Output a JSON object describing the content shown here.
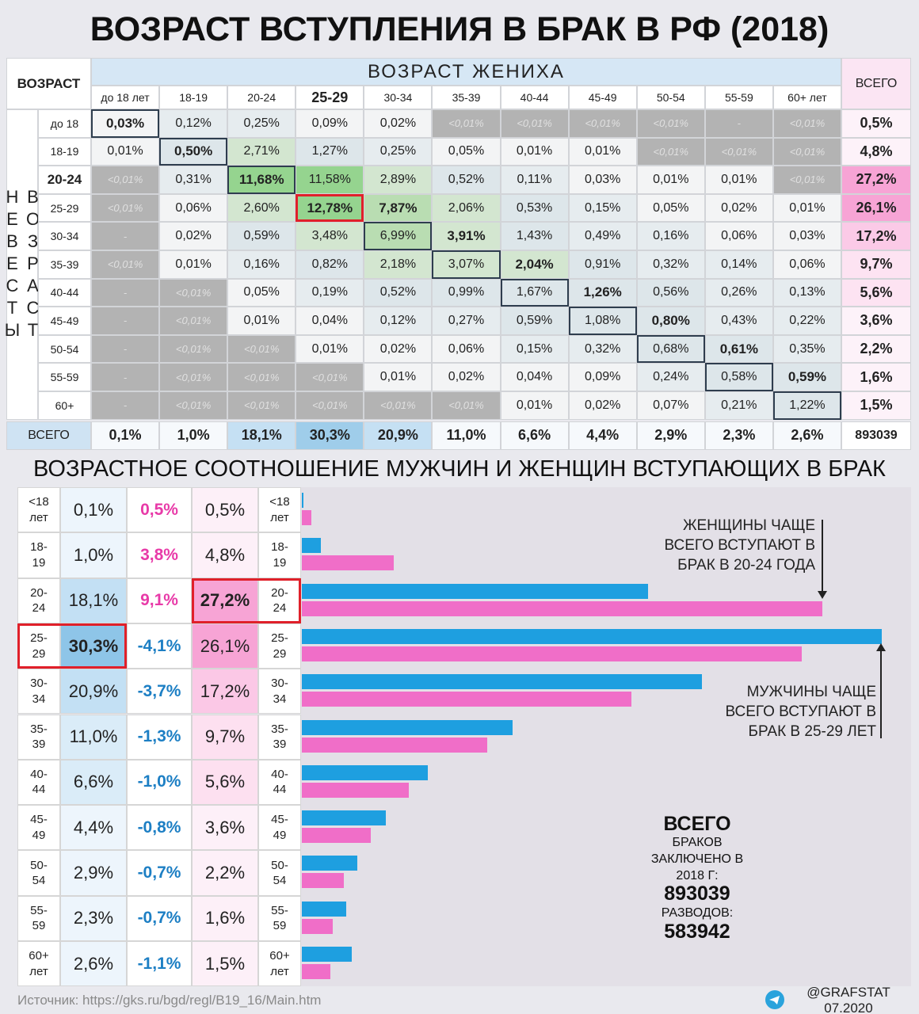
{
  "title": "ВОЗРАСТ ВСТУПЛЕНИЯ В БРАК В РФ (2018)",
  "matrix": {
    "corner": "ВОЗРАСТ",
    "groom_axis": "ВОЗРАСТ ЖЕНИХА",
    "bride_axis": "ВОЗРАСТ НЕВЕСТЫ",
    "total_header": "ВСЕГО",
    "columns": [
      "до 18 лет",
      "18-19",
      "20-24",
      "25-29",
      "30-34",
      "35-39",
      "40-44",
      "45-49",
      "50-54",
      "55-59",
      "60+ лет"
    ],
    "rows": [
      {
        "label": "до 18",
        "cells": [
          "0,03%",
          "0,12%",
          "0,25%",
          "0,09%",
          "0,02%",
          "<0,01%",
          "<0,01%",
          "<0,01%",
          "<0,01%",
          "-",
          "<0,01%"
        ],
        "total": "0,5%"
      },
      {
        "label": "18-19",
        "cells": [
          "0,01%",
          "0,50%",
          "2,71%",
          "1,27%",
          "0,25%",
          "0,05%",
          "0,01%",
          "0,01%",
          "<0,01%",
          "<0,01%",
          "<0,01%"
        ],
        "total": "4,8%"
      },
      {
        "label": "20-24",
        "cells": [
          "<0,01%",
          "0,31%",
          "11,68%",
          "11,58%",
          "2,89%",
          "0,52%",
          "0,11%",
          "0,03%",
          "0,01%",
          "0,01%",
          "<0,01%"
        ],
        "total": "27,2%"
      },
      {
        "label": "25-29",
        "cells": [
          "<0,01%",
          "0,06%",
          "2,60%",
          "12,78%",
          "7,87%",
          "2,06%",
          "0,53%",
          "0,15%",
          "0,05%",
          "0,02%",
          "0,01%"
        ],
        "total": "26,1%"
      },
      {
        "label": "30-34",
        "cells": [
          "-",
          "0,02%",
          "0,59%",
          "3,48%",
          "6,99%",
          "3,91%",
          "1,43%",
          "0,49%",
          "0,16%",
          "0,06%",
          "0,03%"
        ],
        "total": "17,2%"
      },
      {
        "label": "35-39",
        "cells": [
          "<0,01%",
          "0,01%",
          "0,16%",
          "0,82%",
          "2,18%",
          "3,07%",
          "2,04%",
          "0,91%",
          "0,32%",
          "0,14%",
          "0,06%"
        ],
        "total": "9,7%"
      },
      {
        "label": "40-44",
        "cells": [
          "-",
          "<0,01%",
          "0,05%",
          "0,19%",
          "0,52%",
          "0,99%",
          "1,67%",
          "1,26%",
          "0,56%",
          "0,26%",
          "0,13%"
        ],
        "total": "5,6%"
      },
      {
        "label": "45-49",
        "cells": [
          "-",
          "<0,01%",
          "0,01%",
          "0,04%",
          "0,12%",
          "0,27%",
          "0,59%",
          "1,08%",
          "0,80%",
          "0,43%",
          "0,22%"
        ],
        "total": "3,6%"
      },
      {
        "label": "50-54",
        "cells": [
          "-",
          "<0,01%",
          "<0,01%",
          "0,01%",
          "0,02%",
          "0,06%",
          "0,15%",
          "0,32%",
          "0,68%",
          "0,61%",
          "0,35%"
        ],
        "total": "2,2%"
      },
      {
        "label": "55-59",
        "cells": [
          "-",
          "<0,01%",
          "<0,01%",
          "<0,01%",
          "0,01%",
          "0,02%",
          "0,04%",
          "0,09%",
          "0,24%",
          "0,58%",
          "0,59%"
        ],
        "total": "1,6%"
      },
      {
        "label": "60+",
        "cells": [
          "-",
          "<0,01%",
          "<0,01%",
          "<0,01%",
          "<0,01%",
          "<0,01%",
          "0,01%",
          "0,02%",
          "0,07%",
          "0,21%",
          "1,22%"
        ],
        "total": "1,5%"
      }
    ],
    "totals_label": "ВСЕГО",
    "totals": [
      "0,1%",
      "1,0%",
      "18,1%",
      "30,3%",
      "20,9%",
      "11,0%",
      "6,6%",
      "4,4%",
      "2,9%",
      "2,3%",
      "2,6%"
    ],
    "grand_total": 893039
  },
  "section_title": "ВОЗРАСТНОЕ СООТНОШЕНИЕ МУЖЧИН И ЖЕНЩИН ВСТУПАЮЩИХ В БРАК",
  "chart_data": {
    "type": "bar",
    "orientation": "horizontal",
    "categories": [
      "<18 лет",
      "18-19",
      "20-24",
      "25-29",
      "30-34",
      "35-39",
      "40-44",
      "45-49",
      "50-54",
      "55-59",
      "60+ лет"
    ],
    "series": [
      {
        "color": "#1e9fe0",
        "values": [
          0.1,
          1.0,
          18.1,
          30.3,
          20.9,
          11.0,
          6.6,
          4.4,
          2.9,
          2.3,
          2.6
        ],
        "value_labels": [
          "0,1%",
          "1,0%",
          "18,1%",
          "30,3%",
          "20,9%",
          "11,0%",
          "6,6%",
          "4,4%",
          "2,9%",
          "2,3%",
          "2,6%"
        ]
      },
      {
        "color": "#f06ec8",
        "values": [
          0.5,
          4.8,
          27.2,
          26.1,
          17.2,
          9.7,
          5.6,
          3.6,
          2.2,
          1.6,
          1.5
        ],
        "value_labels": [
          "0,5%",
          "4,8%",
          "27,2%",
          "26,1%",
          "17,2%",
          "9,7%",
          "5,6%",
          "3,6%",
          "2,2%",
          "1,6%",
          "1,5%"
        ]
      }
    ],
    "differences": {
      "values": [
        0.5,
        3.8,
        9.1,
        -4.1,
        -3.7,
        -1.3,
        -1.0,
        -0.8,
        -0.7,
        -0.7,
        -1.1
      ],
      "value_labels": [
        "0,5%",
        "3,8%",
        "9,1%",
        "-4,1%",
        "-3,7%",
        "-1,3%",
        "-1,0%",
        "-0,8%",
        "-0,7%",
        "-0,7%",
        "-1,1%"
      ]
    },
    "annotations": [
      "ЖЕНЩИНЫ ЧАЩЕ ВСЕГО ВСТУПАЮТ В БРАК В 20-24 ГОДА",
      "МУЖЧИНЫ ЧАЩЕ ВСЕГО ВСТУПАЮТ В БРАК В 25-29 ЛЕТ"
    ]
  },
  "summary": {
    "heading": "ВСЕГО",
    "marriages_label": "БРАКОВ ЗАКЛЮЧЕНО В 2018 Г:",
    "marriages": 893039,
    "divorces_label": "РАЗВОДОВ:",
    "divorces": 583942
  },
  "footer": {
    "source": "Источник: https://gks.ru/bgd/regl/B19_16/Main.htm",
    "credit": "@GRAFSTAT 07.2020"
  }
}
